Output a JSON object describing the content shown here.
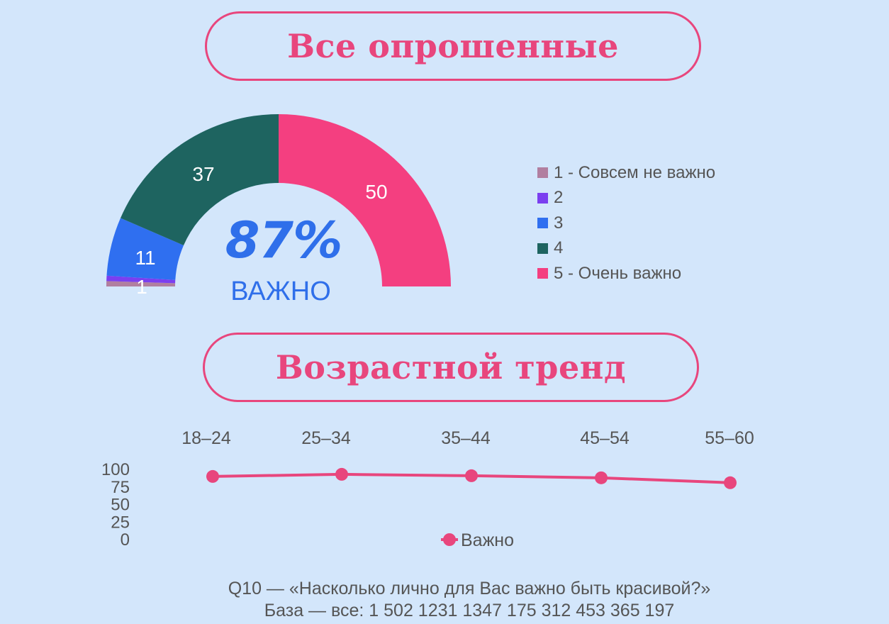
{
  "titles": {
    "all": "Все опрошенные",
    "trend": "Возрастной тренд"
  },
  "highlight": {
    "percent": "87%",
    "label": "ВАЖНО"
  },
  "colors": {
    "accent": "#e8467d",
    "blue_text": "#2f6fea",
    "background": "#d3e6fb"
  },
  "chart_data": [
    {
      "type": "pie",
      "subtype": "half-donut",
      "series": [
        {
          "name": "1 - Совсем не важно",
          "value": 1,
          "color": "#b17fa0"
        },
        {
          "name": "2",
          "value": 1,
          "color": "#7b3ff0"
        },
        {
          "name": "3",
          "value": 11,
          "color": "#2f6ff0"
        },
        {
          "name": "4",
          "value": 37,
          "color": "#1e6460"
        },
        {
          "name": "5 - Очень важно",
          "value": 50,
          "color": "#f43f80"
        }
      ],
      "data_labels": [
        "1",
        "11",
        "37",
        "50"
      ],
      "legend": "right"
    },
    {
      "type": "line",
      "categories": [
        "18–24",
        "25–34",
        "35–44",
        "45–54",
        "55–60"
      ],
      "series": [
        {
          "name": "Важно",
          "values": [
            89,
            92,
            90,
            87,
            80
          ],
          "color": "#e8467d"
        }
      ],
      "yticks": [
        "100",
        "75",
        "50",
        "25",
        "0"
      ],
      "ylim": [
        0,
        100
      ],
      "legend": "bottom"
    }
  ],
  "footer": {
    "question": "Q10 — «Насколько лично для Вас важно быть красивой?»",
    "base": "База — все: 1 502 1231 1347 175 312 453 365 197"
  }
}
